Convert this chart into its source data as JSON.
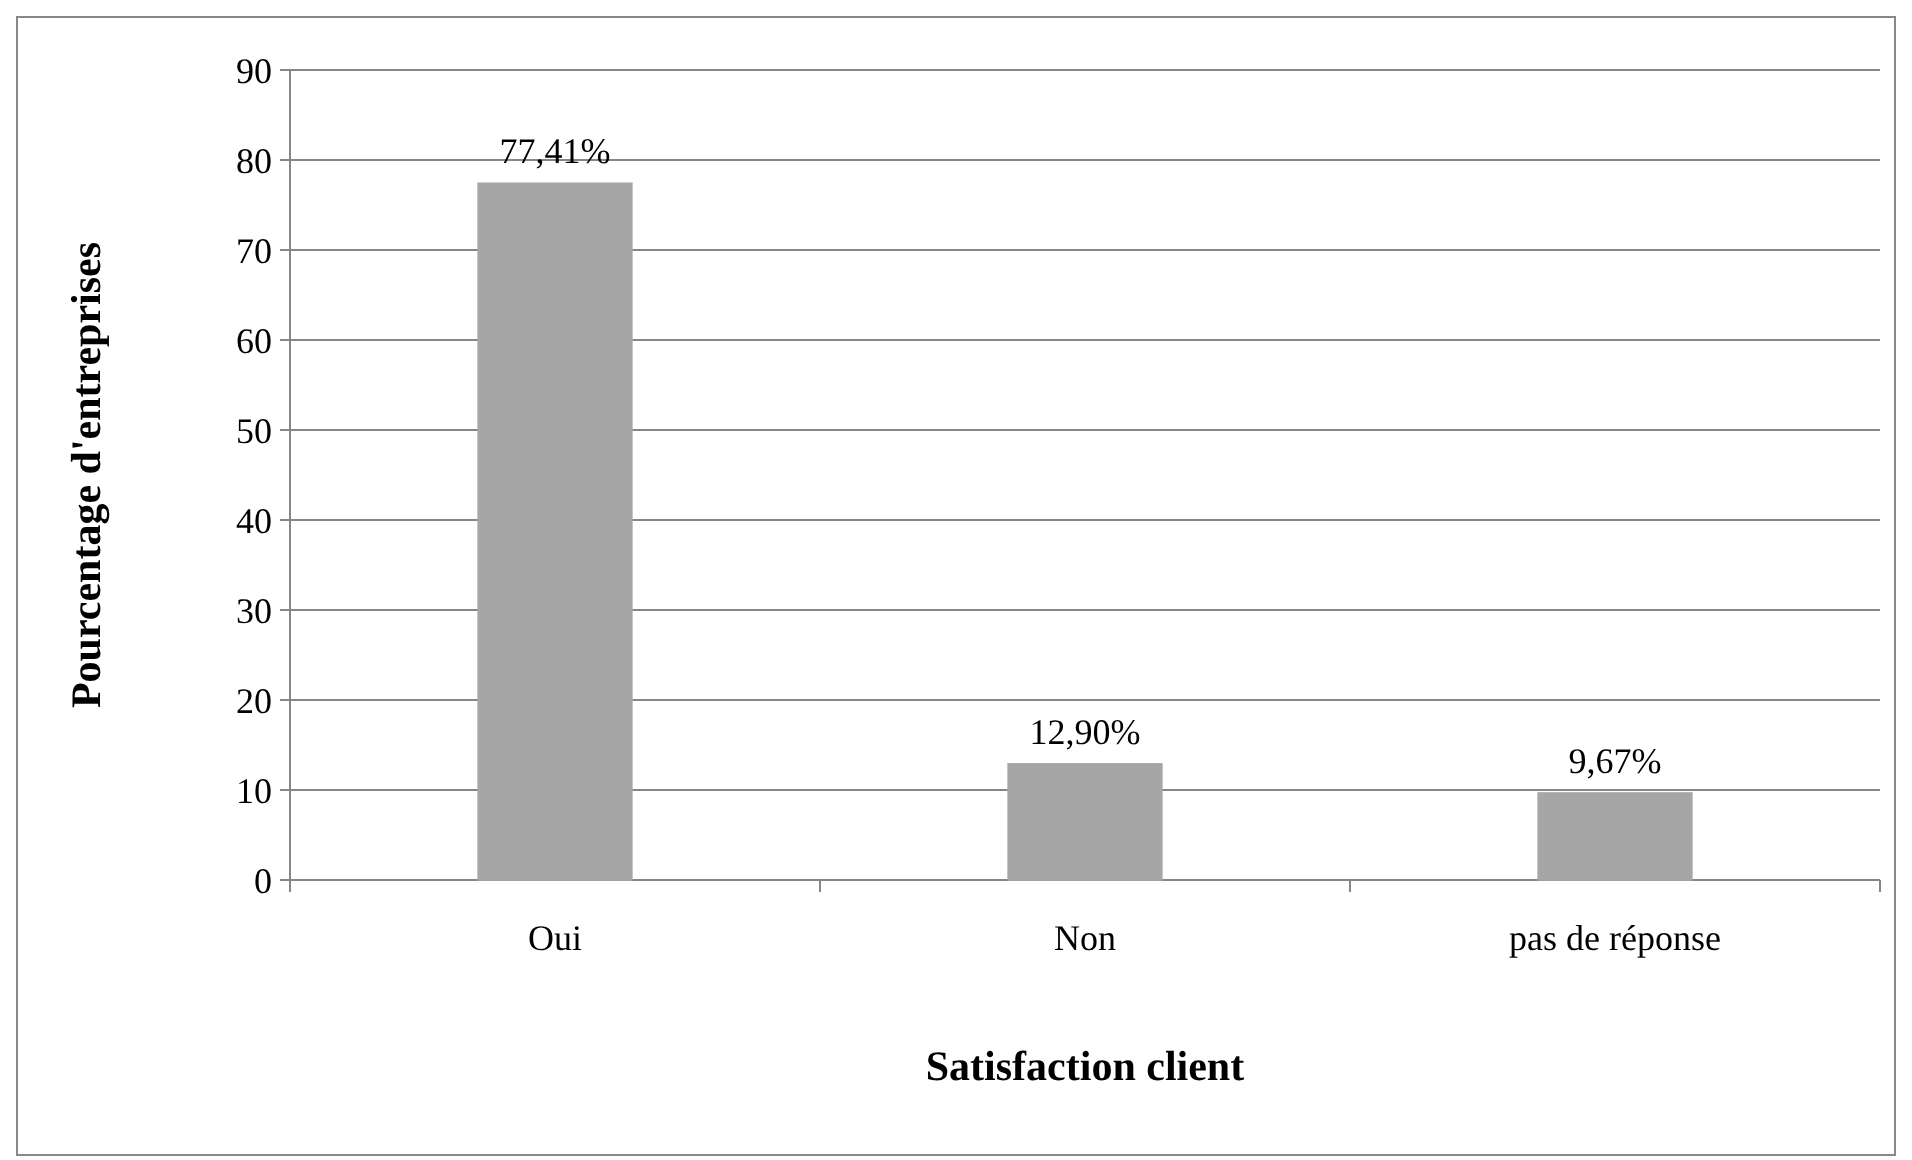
{
  "chart_data": {
    "type": "bar",
    "xlabel": "Satisfaction client",
    "ylabel": "Pourcentage d'entreprises",
    "categories": [
      "Oui",
      "Non",
      "pas de réponse"
    ],
    "values": [
      77.41,
      12.9,
      9.67
    ],
    "value_labels": [
      "77,41%",
      "12,90%",
      "9,67%"
    ],
    "color": "#a6a6a6",
    "ylim": [
      0,
      90
    ],
    "yticks": [
      0,
      10,
      20,
      30,
      40,
      50,
      60,
      70,
      80,
      90
    ],
    "grid": "y"
  }
}
